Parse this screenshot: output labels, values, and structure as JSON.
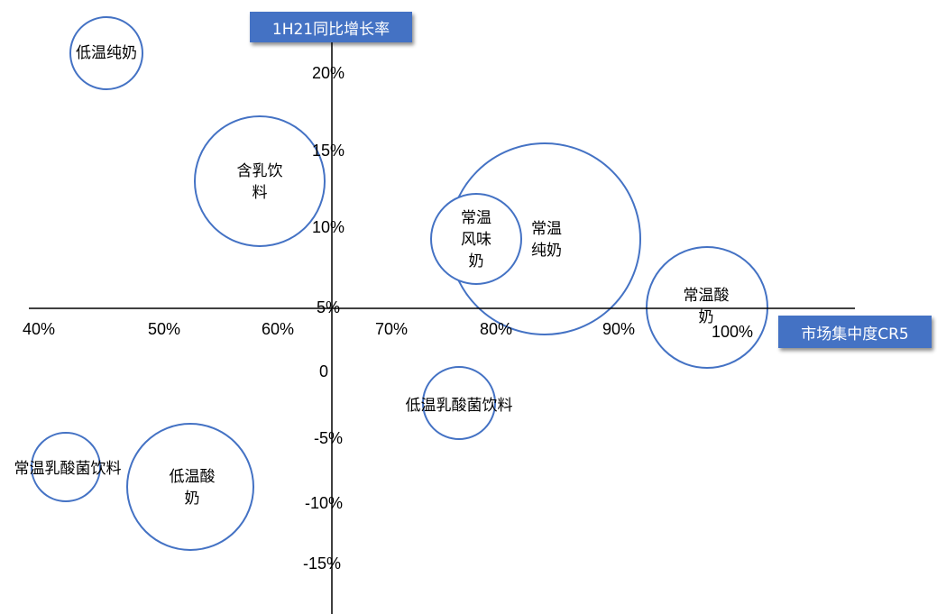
{
  "chart_data": {
    "type": "scatter",
    "title": "",
    "xlabel": "市场集中度CR5",
    "ylabel": "1H21同比增长率",
    "x_ticks": [
      "40%",
      "50%",
      "60%",
      "70%",
      "80%",
      "90%",
      "100%"
    ],
    "y_ticks": [
      "20%",
      "15%",
      "10%",
      "5%",
      "0",
      "-5%",
      "-10%",
      "-15%"
    ],
    "bubbles": [
      {
        "label": [
          "低温纯奶"
        ],
        "x": 45,
        "y": 21
      },
      {
        "label": [
          "含乳饮",
          "料"
        ],
        "x": 58,
        "y": 15
      },
      {
        "label": [
          "常温",
          "纯奶"
        ],
        "x": 84,
        "y": 9.5
      },
      {
        "label": [
          "常温",
          "风味",
          "奶"
        ],
        "x": 76.5,
        "y": 9.5
      },
      {
        "label": [
          "常温酸",
          "奶"
        ],
        "x": 93,
        "y": 5
      },
      {
        "label": [
          "低温乳酸菌饮料"
        ],
        "x": 76.5,
        "y": -2.5
      },
      {
        "label": [
          "常温乳酸菌饮料"
        ],
        "x": 43,
        "y": -7.5
      },
      {
        "label": [
          "低温酸",
          "奶"
        ],
        "x": 52.5,
        "y": -8.5
      }
    ]
  },
  "colors": {
    "bubble_stroke": "#4472c4",
    "label_box": "#4472c4"
  }
}
